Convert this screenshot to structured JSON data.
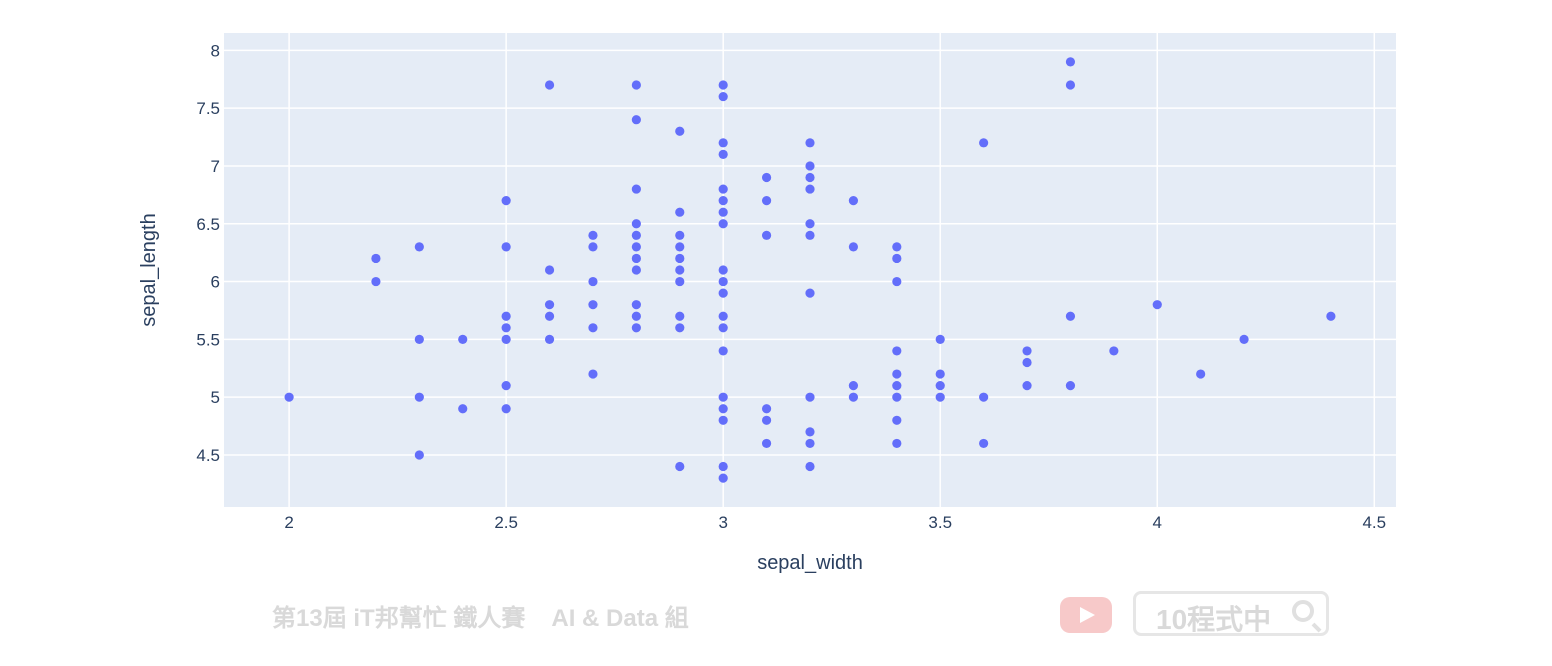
{
  "chart_data": {
    "type": "scatter",
    "xlabel": "sepal_width",
    "ylabel": "sepal_length",
    "xlim": [
      1.85,
      4.55
    ],
    "ylim": [
      4.05,
      8.15
    ],
    "xticks": [
      2,
      2.5,
      3,
      3.5,
      4,
      4.5
    ],
    "xtick_labels": [
      "2",
      "2.5",
      "3",
      "3.5",
      "4",
      "4.5"
    ],
    "yticks": [
      4.5,
      5,
      5.5,
      6,
      6.5,
      7,
      7.5,
      8
    ],
    "ytick_labels": [
      "4.5",
      "5",
      "5.5",
      "6",
      "6.5",
      "7",
      "7.5",
      "8"
    ],
    "grid": true,
    "marker_color": "#636efa",
    "plot_bgcolor": "#e5ecf6",
    "points": [
      [
        2.0,
        5.0
      ],
      [
        2.2,
        6.2
      ],
      [
        2.2,
        6.0
      ],
      [
        2.3,
        6.3
      ],
      [
        2.3,
        5.5
      ],
      [
        2.3,
        5.0
      ],
      [
        2.3,
        4.5
      ],
      [
        2.4,
        5.5
      ],
      [
        2.4,
        4.9
      ],
      [
        2.5,
        6.7
      ],
      [
        2.5,
        6.3
      ],
      [
        2.5,
        5.7
      ],
      [
        2.5,
        5.6
      ],
      [
        2.5,
        5.5
      ],
      [
        2.5,
        5.1
      ],
      [
        2.5,
        4.9
      ],
      [
        2.6,
        7.7
      ],
      [
        2.6,
        6.1
      ],
      [
        2.6,
        5.8
      ],
      [
        2.6,
        5.7
      ],
      [
        2.6,
        5.5
      ],
      [
        2.7,
        6.4
      ],
      [
        2.7,
        6.3
      ],
      [
        2.7,
        6.0
      ],
      [
        2.7,
        5.8
      ],
      [
        2.7,
        5.6
      ],
      [
        2.7,
        5.2
      ],
      [
        2.8,
        7.7
      ],
      [
        2.8,
        7.4
      ],
      [
        2.8,
        6.8
      ],
      [
        2.8,
        6.5
      ],
      [
        2.8,
        6.4
      ],
      [
        2.8,
        6.3
      ],
      [
        2.8,
        6.2
      ],
      [
        2.8,
        6.1
      ],
      [
        2.8,
        5.8
      ],
      [
        2.8,
        5.7
      ],
      [
        2.8,
        5.6
      ],
      [
        2.9,
        7.3
      ],
      [
        2.9,
        6.6
      ],
      [
        2.9,
        6.4
      ],
      [
        2.9,
        6.3
      ],
      [
        2.9,
        6.2
      ],
      [
        2.9,
        6.1
      ],
      [
        2.9,
        6.0
      ],
      [
        2.9,
        5.7
      ],
      [
        2.9,
        5.6
      ],
      [
        2.9,
        4.4
      ],
      [
        3.0,
        7.7
      ],
      [
        3.0,
        7.6
      ],
      [
        3.0,
        7.2
      ],
      [
        3.0,
        7.1
      ],
      [
        3.0,
        6.8
      ],
      [
        3.0,
        6.7
      ],
      [
        3.0,
        6.6
      ],
      [
        3.0,
        6.5
      ],
      [
        3.0,
        6.1
      ],
      [
        3.0,
        6.0
      ],
      [
        3.0,
        5.9
      ],
      [
        3.0,
        5.7
      ],
      [
        3.0,
        5.6
      ],
      [
        3.0,
        5.4
      ],
      [
        3.0,
        5.0
      ],
      [
        3.0,
        4.9
      ],
      [
        3.0,
        4.8
      ],
      [
        3.0,
        4.4
      ],
      [
        3.0,
        4.3
      ],
      [
        3.1,
        6.9
      ],
      [
        3.1,
        6.7
      ],
      [
        3.1,
        6.4
      ],
      [
        3.1,
        4.9
      ],
      [
        3.1,
        4.8
      ],
      [
        3.1,
        4.6
      ],
      [
        3.2,
        7.2
      ],
      [
        3.2,
        7.0
      ],
      [
        3.2,
        6.9
      ],
      [
        3.2,
        6.8
      ],
      [
        3.2,
        6.5
      ],
      [
        3.2,
        6.4
      ],
      [
        3.2,
        5.9
      ],
      [
        3.2,
        5.0
      ],
      [
        3.2,
        4.7
      ],
      [
        3.2,
        4.6
      ],
      [
        3.2,
        4.4
      ],
      [
        3.3,
        6.7
      ],
      [
        3.3,
        6.3
      ],
      [
        3.3,
        5.1
      ],
      [
        3.3,
        5.0
      ],
      [
        3.4,
        6.3
      ],
      [
        3.4,
        6.2
      ],
      [
        3.4,
        6.0
      ],
      [
        3.4,
        5.4
      ],
      [
        3.4,
        5.2
      ],
      [
        3.4,
        5.1
      ],
      [
        3.4,
        5.0
      ],
      [
        3.4,
        4.8
      ],
      [
        3.4,
        4.6
      ],
      [
        3.5,
        5.5
      ],
      [
        3.5,
        5.2
      ],
      [
        3.5,
        5.1
      ],
      [
        3.5,
        5.0
      ],
      [
        3.6,
        7.2
      ],
      [
        3.6,
        5.0
      ],
      [
        3.6,
        4.6
      ],
      [
        3.7,
        5.4
      ],
      [
        3.7,
        5.3
      ],
      [
        3.7,
        5.1
      ],
      [
        3.8,
        7.9
      ],
      [
        3.8,
        7.7
      ],
      [
        3.8,
        5.7
      ],
      [
        3.8,
        5.1
      ],
      [
        3.9,
        5.4
      ],
      [
        4.0,
        5.8
      ],
      [
        4.1,
        5.2
      ],
      [
        4.2,
        5.5
      ],
      [
        4.4,
        5.7
      ]
    ]
  },
  "watermark": {
    "left_text_a": "第13屆 iT邦幫忙 鐵人賽",
    "left_text_b": "AI & Data 組",
    "search_text": "10程式中"
  }
}
